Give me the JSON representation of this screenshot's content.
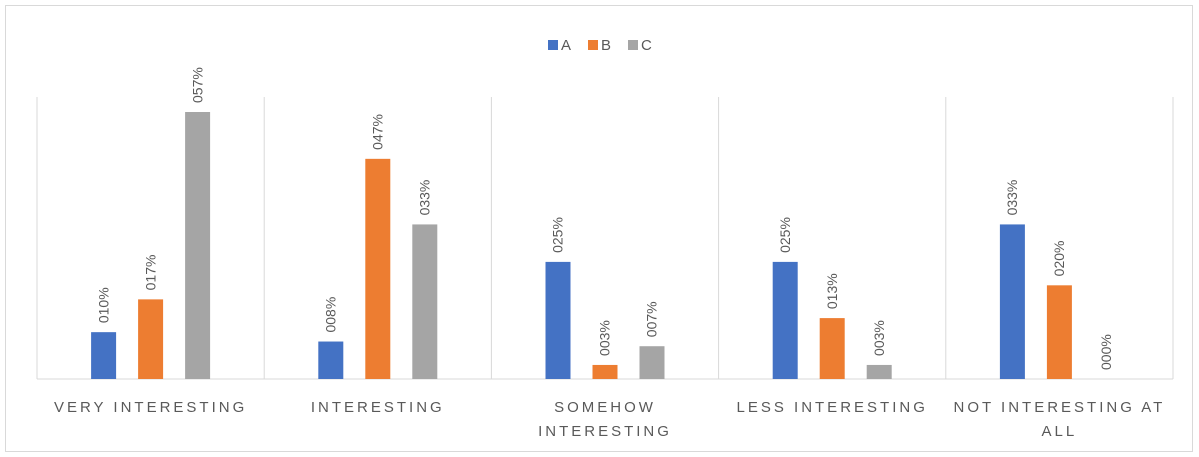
{
  "chart_data": {
    "type": "bar",
    "categories": [
      "VERY INTERESTING",
      "INTERESTING",
      "SOMEHOW INTERESTING",
      "LESS INTERESTING",
      "NOT INTERESTING AT ALL"
    ],
    "series": [
      {
        "name": "A",
        "color": "#4472c4",
        "values": [
          10,
          8,
          25,
          25,
          33
        ],
        "value_labels": [
          "010%",
          "008%",
          "025%",
          "025%",
          "033%"
        ]
      },
      {
        "name": "B",
        "color": "#ed7d31",
        "values": [
          17,
          47,
          3,
          13,
          20
        ],
        "value_labels": [
          "017%",
          "047%",
          "003%",
          "013%",
          "020%"
        ]
      },
      {
        "name": "C",
        "color": "#a5a5a5",
        "values": [
          57,
          33,
          7,
          3,
          0
        ],
        "value_labels": [
          "057%",
          "033%",
          "007%",
          "003%",
          "000%"
        ]
      }
    ],
    "legend": "top"
  }
}
